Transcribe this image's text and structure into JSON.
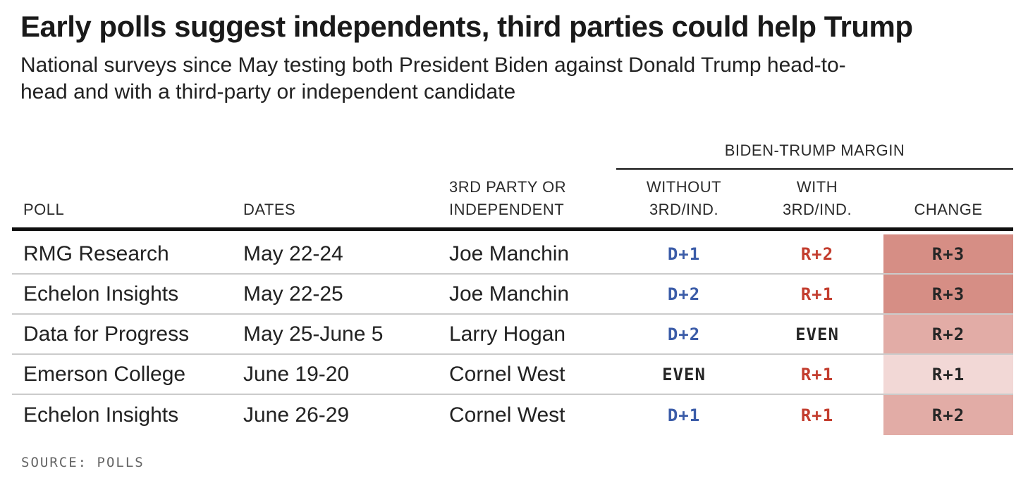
{
  "header": {
    "title": "Early polls suggest independents, third parties could help Trump",
    "subtitle_line1": "National surveys since May testing both President Biden against Donald Trump head-to-",
    "subtitle_line2": "head and with a third-party or independent candidate"
  },
  "chart_data": {
    "type": "table",
    "title": "Early polls suggest independents, third parties could help Trump",
    "subtitle": "National surveys since May testing both President Biden against Donald Trump head-to-head and with a third-party or independent candidate",
    "group_header": "BIDEN-TRUMP MARGIN",
    "columns": [
      "POLL",
      "DATES",
      "3RD PARTY OR INDEPENDENT",
      "WITHOUT 3RD/IND.",
      "WITH 3RD/IND.",
      "CHANGE"
    ],
    "rows": [
      [
        "RMG Research",
        "May 22-24",
        "Joe Manchin",
        "D+1",
        "R+2",
        "R+3"
      ],
      [
        "Echelon Insights",
        "May 22-25",
        "Joe Manchin",
        "D+2",
        "R+1",
        "R+3"
      ],
      [
        "Data for Progress",
        "May 25-June 5",
        "Larry Hogan",
        "D+2",
        "EVEN",
        "R+2"
      ],
      [
        "Emerson College",
        "June 19-20",
        "Cornel West",
        "EVEN",
        "R+1",
        "R+1"
      ],
      [
        "Echelon Insights",
        "June 26-29",
        "Cornel West",
        "D+1",
        "R+1",
        "R+2"
      ]
    ],
    "source": "SOURCE: POLLS"
  },
  "table": {
    "group_header": "BIDEN-TRUMP MARGIN",
    "columns": {
      "poll": "POLL",
      "dates": "DATES",
      "third_line1": "3RD PARTY OR",
      "third_line2": "INDEPENDENT",
      "without_line1": "WITHOUT",
      "without_line2": "3RD/IND.",
      "with_line1": "WITH",
      "with_line2": "3RD/IND.",
      "change": "CHANGE"
    },
    "rows": [
      {
        "poll": "RMG Research",
        "dates": "May 22-24",
        "third": "Joe Manchin",
        "without": "D+1",
        "without_class": "dem",
        "with": "R+2",
        "with_class": "rep",
        "change": "R+3",
        "change_class": "lvl3"
      },
      {
        "poll": "Echelon Insights",
        "dates": "May 22-25",
        "third": "Joe Manchin",
        "without": "D+2",
        "without_class": "dem",
        "with": "R+1",
        "with_class": "rep",
        "change": "R+3",
        "change_class": "lvl3"
      },
      {
        "poll": "Data for Progress",
        "dates": "May 25-June 5",
        "third": "Larry Hogan",
        "without": "D+2",
        "without_class": "dem",
        "with": "EVEN",
        "with_class": "even",
        "change": "R+2",
        "change_class": "lvl2"
      },
      {
        "poll": "Emerson College",
        "dates": "June 19-20",
        "third": "Cornel West",
        "without": "EVEN",
        "without_class": "even",
        "with": "R+1",
        "with_class": "rep",
        "change": "R+1",
        "change_class": "lvl1"
      },
      {
        "poll": "Echelon Insights",
        "dates": "June 26-29",
        "third": "Cornel West",
        "without": "D+1",
        "without_class": "dem",
        "with": "R+1",
        "with_class": "rep",
        "change": "R+2",
        "change_class": "lvl2"
      }
    ]
  },
  "footer": {
    "source": "SOURCE: POLLS"
  },
  "colors": {
    "dem_blue": "#3b5ca8",
    "rep_red": "#c33d2e",
    "change_bg_r3": "#d68e85",
    "change_bg_r2": "#e2aca6",
    "change_bg_r1": "#f2d8d6",
    "separator_gray": "#cbcbcb",
    "rule_black": "#0f0f0f"
  }
}
